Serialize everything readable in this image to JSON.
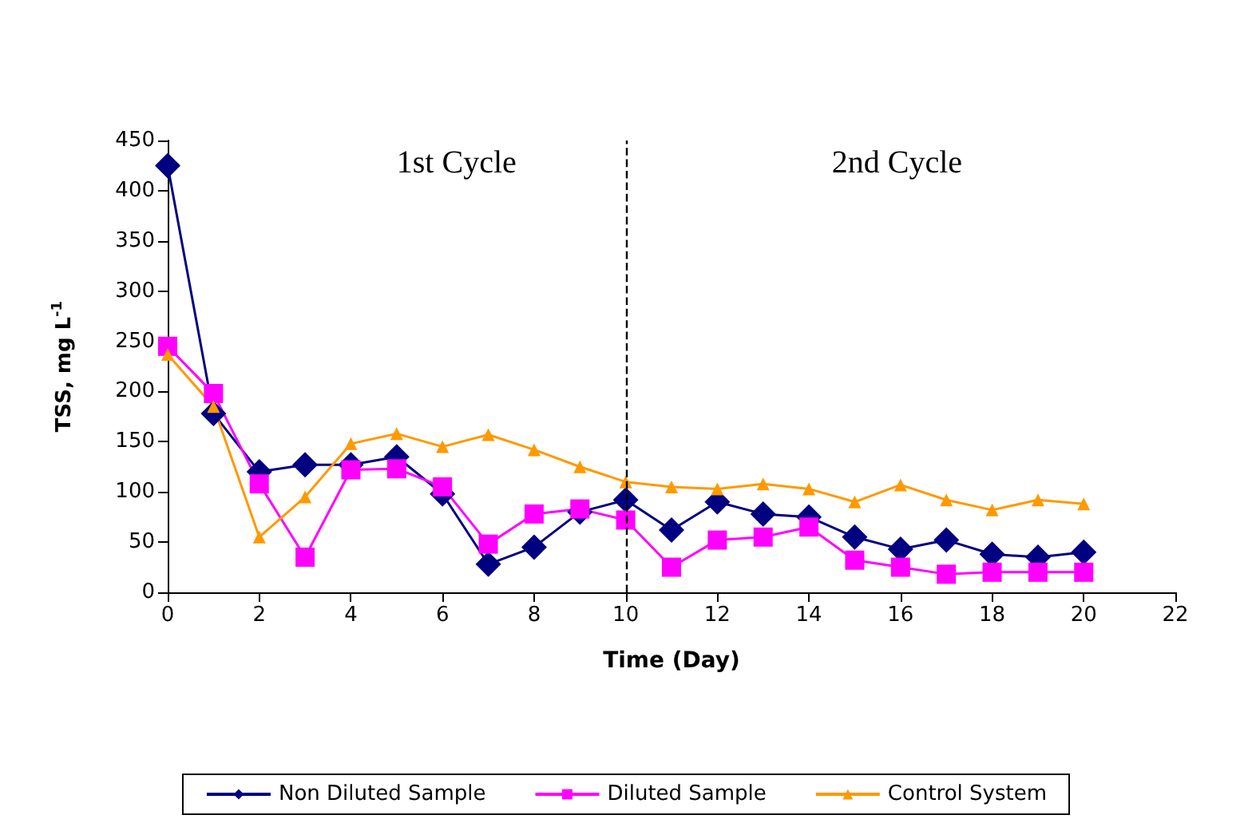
{
  "chart_data": {
    "type": "line",
    "xlabel": "Time (Day)",
    "ylabel": "TSS, mg L$^{-1}$",
    "x": [
      0,
      1,
      2,
      3,
      4,
      5,
      6,
      7,
      8,
      9,
      10,
      11,
      12,
      13,
      14,
      15,
      16,
      17,
      18,
      19,
      20
    ],
    "series": [
      {
        "name": "Non Diluted Sample",
        "color": "#000080",
        "marker": "diamond",
        "values": [
          425,
          178,
          120,
          127,
          127,
          135,
          98,
          28,
          45,
          80,
          92,
          62,
          90,
          78,
          75,
          55,
          43,
          52,
          38,
          35,
          40
        ]
      },
      {
        "name": "Diluted Sample",
        "color": "#ff00ff",
        "marker": "square",
        "values": [
          245,
          198,
          108,
          35,
          122,
          123,
          105,
          48,
          78,
          83,
          72,
          25,
          52,
          55,
          65,
          32,
          25,
          18,
          20,
          20,
          20
        ]
      },
      {
        "name": "Control System",
        "color": "#ff9900",
        "marker": "triangle",
        "values": [
          237,
          185,
          55,
          95,
          148,
          158,
          145,
          157,
          142,
          125,
          110,
          105,
          103,
          108,
          103,
          90,
          107,
          92,
          82,
          92,
          88
        ]
      }
    ],
    "xlim": [
      0,
      22
    ],
    "xticks": [
      0,
      2,
      4,
      6,
      8,
      10,
      12,
      14,
      16,
      18,
      20,
      22
    ],
    "ylim": [
      0,
      450
    ],
    "yticks": [
      0,
      50,
      100,
      150,
      200,
      250,
      300,
      350,
      400,
      450
    ],
    "ref_lines": [
      {
        "axis": "x",
        "value": 10,
        "color": "#000000",
        "line_style": "dashed"
      }
    ],
    "annotations": [
      "1st Cycle",
      "2nd Cycle"
    ],
    "grid": false,
    "legend": "bottom",
    "line_style": "solid"
  }
}
